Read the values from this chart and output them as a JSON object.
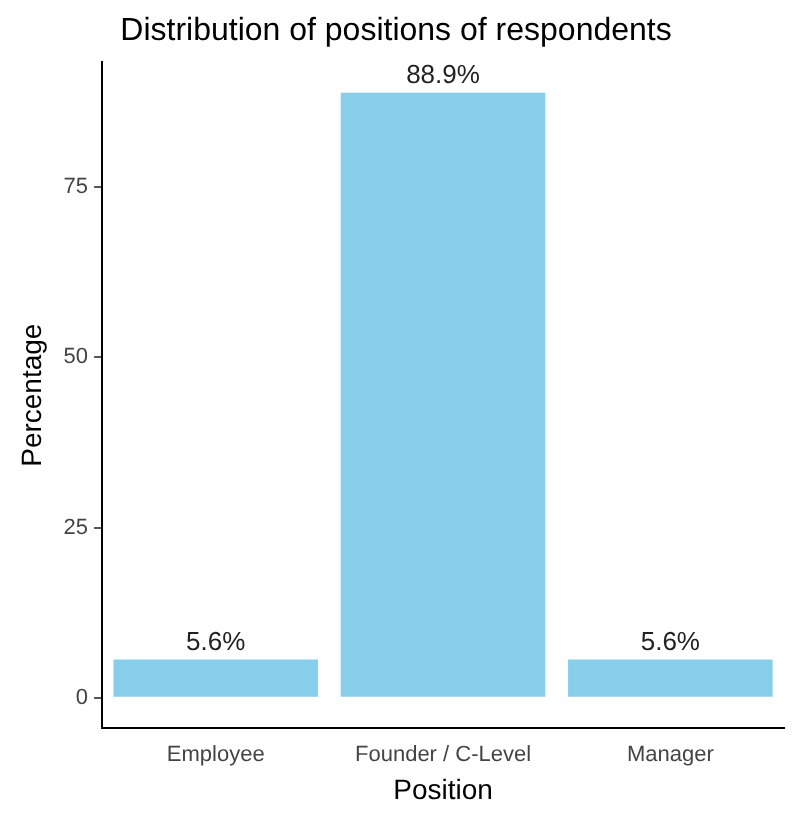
{
  "chart_data": {
    "type": "bar",
    "title": "Distribution of positions of respondents",
    "xlabel": "Position",
    "ylabel": "Percentage",
    "categories": [
      "Employee",
      "Founder / C-Level",
      "Manager"
    ],
    "values": [
      5.6,
      88.9,
      5.6
    ],
    "color": "#87ceeb",
    "value_labels": [
      "5.6%",
      "88.9%",
      "5.6%"
    ],
    "ylim": [
      -4.45,
      93.35
    ],
    "yticks": [
      0,
      25,
      50,
      75
    ],
    "grid": false,
    "legend": false
  }
}
